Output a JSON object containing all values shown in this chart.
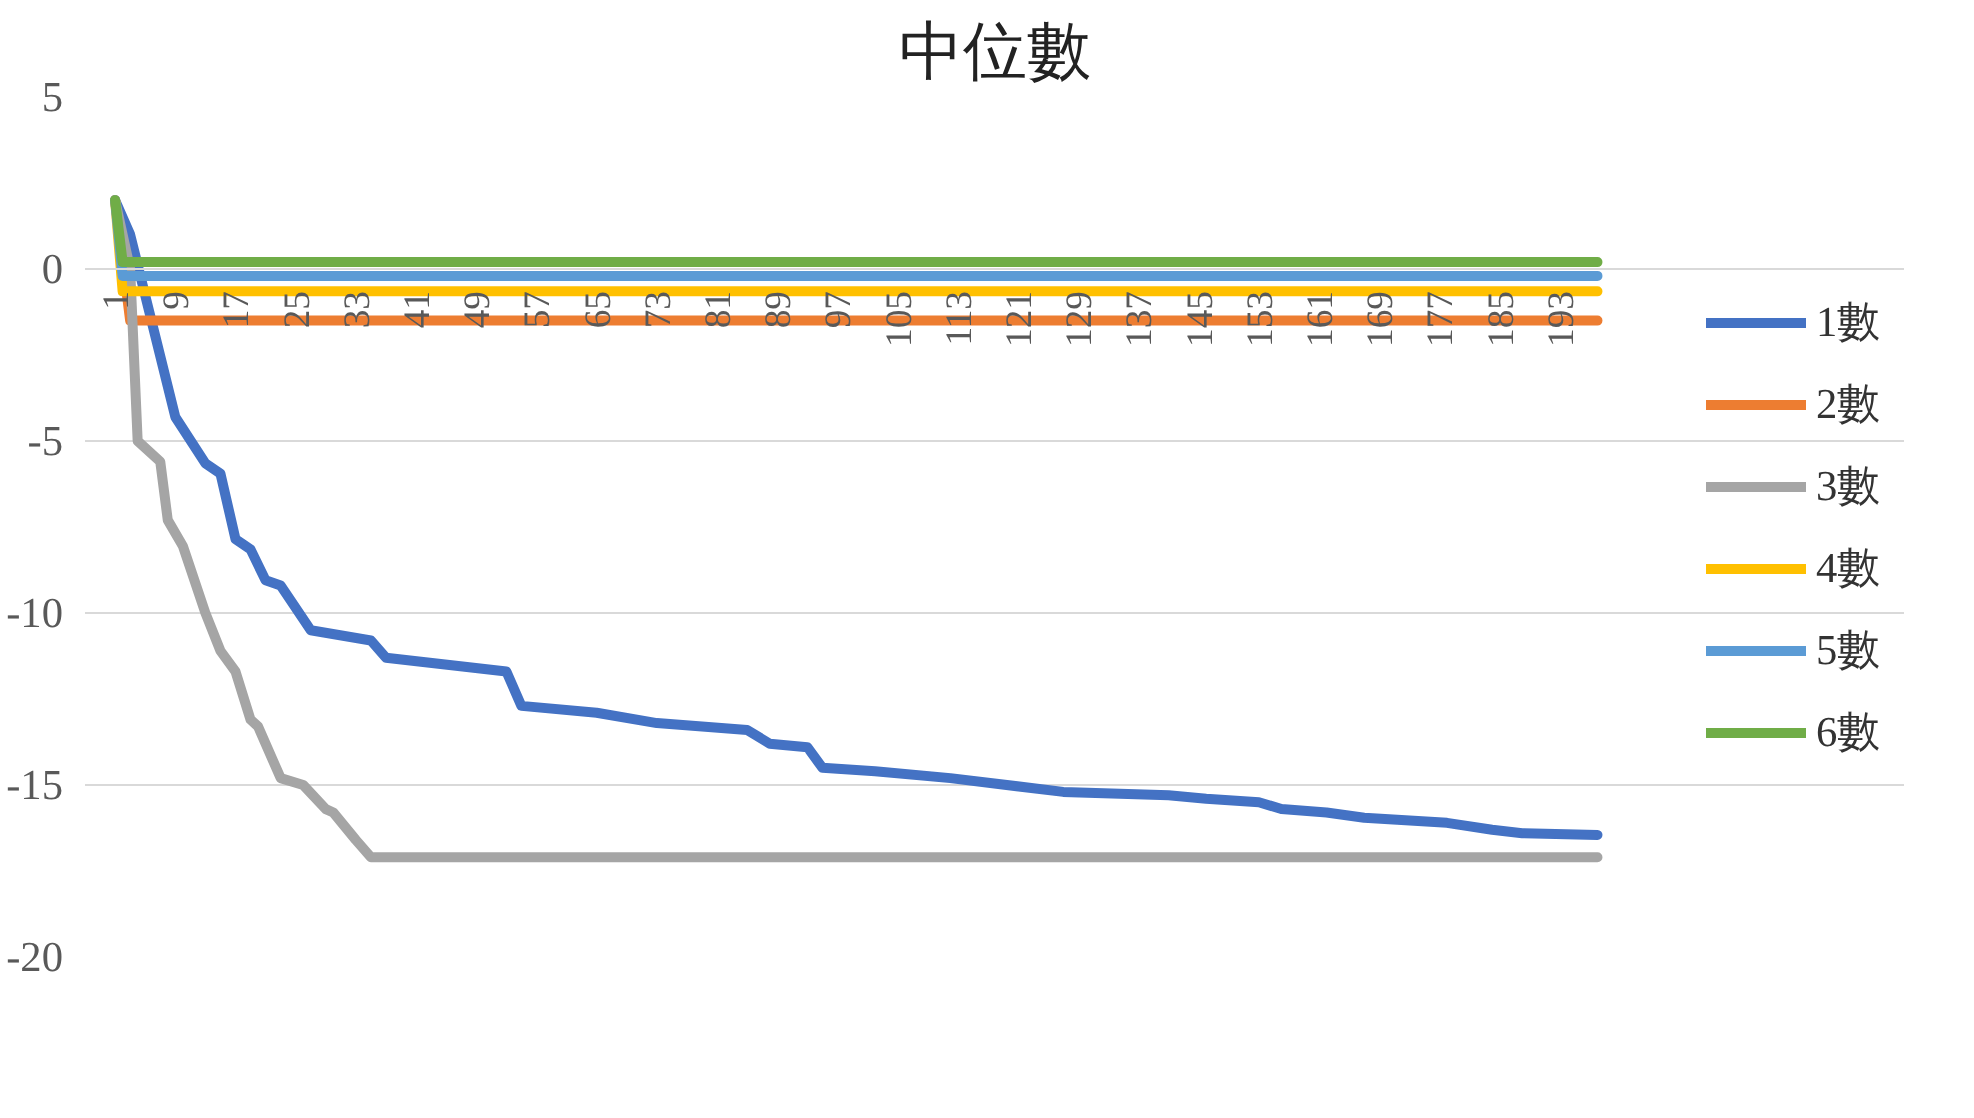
{
  "chart_data": {
    "type": "line",
    "title": "中位數",
    "xlim": [
      -3,
      199
    ],
    "ylim": [
      -20,
      5
    ],
    "xticks": [
      1,
      9,
      17,
      25,
      33,
      41,
      49,
      57,
      65,
      73,
      81,
      89,
      97,
      105,
      113,
      121,
      129,
      137,
      145,
      153,
      161,
      169,
      177,
      185,
      193
    ],
    "yticks": [
      5,
      0,
      -5,
      -10,
      -15,
      -20
    ],
    "grid": "y",
    "legend": "right",
    "marker": "none",
    "line_style": "solid",
    "series": [
      {
        "name": "1數",
        "color": "#4472c4",
        "x": [
          1,
          3,
          9,
          13,
          15,
          17,
          19,
          21,
          23,
          27,
          35,
          37,
          53,
          55,
          65,
          73,
          85,
          88,
          93,
          95,
          102,
          112,
          127,
          141,
          146,
          153,
          156,
          162,
          167,
          178,
          184,
          188,
          198
        ],
        "values": [
          2,
          1,
          -4.3,
          -5.65,
          -5.95,
          -7.85,
          -8.15,
          -9.05,
          -9.2,
          -10.5,
          -10.8,
          -11.3,
          -11.7,
          -12.7,
          -12.9,
          -13.2,
          -13.4,
          -13.8,
          -13.9,
          -14.5,
          -14.6,
          -14.8,
          -15.2,
          -15.3,
          -15.4,
          -15.5,
          -15.7,
          -15.8,
          -15.95,
          -16.1,
          -16.3,
          -16.4,
          -16.45
        ]
      },
      {
        "name": "2數",
        "color": "#ed7d31",
        "x": [
          1,
          3,
          198
        ],
        "values": [
          2,
          -1.5,
          -1.5
        ]
      },
      {
        "name": "3數",
        "color": "#a5a5a5",
        "x": [
          1,
          3,
          4,
          7,
          8,
          10,
          13,
          15,
          17,
          19,
          20,
          23,
          26,
          29,
          30,
          33,
          35,
          198
        ],
        "values": [
          2,
          0,
          -5,
          -5.6,
          -7.3,
          -8.05,
          -10,
          -11.1,
          -11.7,
          -13.1,
          -13.3,
          -14.8,
          -15,
          -15.7,
          -15.8,
          -16.6,
          -17.1,
          -17.1
        ]
      },
      {
        "name": "4數",
        "color": "#ffc000",
        "x": [
          1,
          2,
          198
        ],
        "values": [
          2,
          -0.65,
          -0.65
        ]
      },
      {
        "name": "5數",
        "color": "#5b9bd5",
        "x": [
          1,
          2,
          198
        ],
        "values": [
          2,
          -0.2,
          -0.2
        ]
      },
      {
        "name": "6數",
        "color": "#70ad47",
        "x": [
          1,
          2,
          198
        ],
        "values": [
          2,
          0.2,
          0.2
        ]
      }
    ]
  }
}
